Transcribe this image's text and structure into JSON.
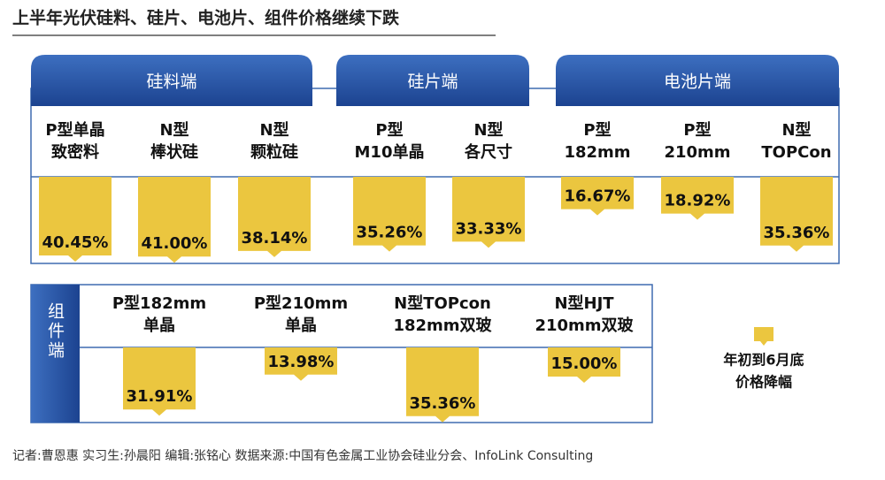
{
  "title": "上半年光伏硅料、硅片、电池片、组件价格继续下跌",
  "sections": [
    {
      "name": "硅料端",
      "items": [
        {
          "label": [
            "P型单晶",
            "致密料"
          ],
          "value": 40.45,
          "value_label": "40.45%"
        },
        {
          "label": [
            "N型",
            "棒状硅"
          ],
          "value": 41.0,
          "value_label": "41.00%"
        },
        {
          "label": [
            "N型",
            "颗粒硅"
          ],
          "value": 38.14,
          "value_label": "38.14%"
        }
      ]
    },
    {
      "name": "硅片端",
      "items": [
        {
          "label": [
            "P型",
            "M10单晶"
          ],
          "value": 35.26,
          "value_label": "35.26%"
        },
        {
          "label": [
            "N型",
            "各尺寸"
          ],
          "value": 33.33,
          "value_label": "33.33%"
        }
      ]
    },
    {
      "name": "电池片端",
      "items": [
        {
          "label": [
            "P型",
            "182mm"
          ],
          "value": 16.67,
          "value_label": "16.67%"
        },
        {
          "label": [
            "P型",
            "210mm"
          ],
          "value": 18.92,
          "value_label": "18.92%"
        },
        {
          "label": [
            "N型",
            "TOPCon"
          ],
          "value": 35.36,
          "value_label": "35.36%"
        }
      ]
    },
    {
      "name": "组件端",
      "items": [
        {
          "label": [
            "P型182mm",
            "单晶"
          ],
          "value": 31.91,
          "value_label": "31.91%"
        },
        {
          "label": [
            "P型210mm",
            "单晶"
          ],
          "value": 13.98,
          "value_label": "13.98%"
        },
        {
          "label": [
            "N型TOPcon",
            "182mm双玻"
          ],
          "value": 35.36,
          "value_label": "35.36%"
        },
        {
          "label": [
            "N型HJT",
            "210mm双玻"
          ],
          "value": 15.0,
          "value_label": "15.00%"
        }
      ]
    }
  ],
  "legend": [
    "年初到6月底",
    "价格降幅"
  ],
  "color": "#ebc63f",
  "footer": "记者:曹恩惠   实习生:孙晨阳   编辑:张铭心   数据来源:中国有色金属工业协会硅业分会、InfoLink Consulting"
}
